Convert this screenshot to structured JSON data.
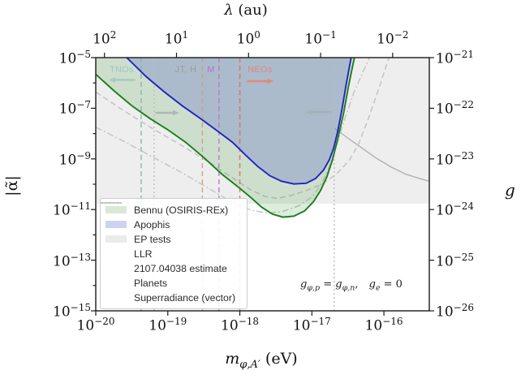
{
  "labels": {
    "top_axis": {
      "sym": "λ",
      "unit": " (au)"
    },
    "bottom_axis": {
      "sym": "m",
      "sub": "φ,A′",
      "unit": " (eV)"
    },
    "left_axis": "|α̃|",
    "right_axis": "g",
    "annotation_parts": [
      [
        "g",
        "i"
      ],
      [
        "φ,p",
        "sub"
      ],
      [
        " = ",
        "n"
      ],
      [
        "g",
        "i"
      ],
      [
        "φ,n",
        "sub"
      ],
      [
        ",",
        "n"
      ],
      [
        "  ",
        "n"
      ],
      [
        "g",
        "i"
      ],
      [
        "e",
        "sub"
      ],
      [
        " = 0",
        "n"
      ]
    ]
  },
  "axes": {
    "x": {
      "scale": "log",
      "label": "m_{φ,A′} (eV)",
      "min_exp": -20,
      "max_exp": -15.37,
      "ticks_exp": [
        -20,
        -19,
        -18,
        -17,
        -16
      ]
    },
    "x_top": {
      "scale": "log",
      "label": "λ (au)",
      "ticks_exp": [
        2,
        1,
        0,
        -1,
        -2
      ],
      "m_log_offset": -17.879
    },
    "y": {
      "scale": "log",
      "label": "|α̃|",
      "min_exp": -15,
      "max_exp": -5,
      "ticks_exp": [
        -5,
        -7,
        -9,
        -11,
        -13,
        -15
      ],
      "minor_ticks_exp": [
        -6,
        -8,
        -10,
        -12,
        -14
      ]
    },
    "y_right": {
      "scale": "log",
      "label": "g",
      "min_exp": -26,
      "max_exp": -21,
      "ticks_exp": [
        -21,
        -22,
        -23,
        -24,
        -25,
        -26
      ]
    }
  },
  "chart_data": {
    "type": "line",
    "title": "",
    "xlabel": "m_{φ,A′} (eV)",
    "ylabel_left": "|α̃|",
    "ylabel_right": "g",
    "x_range_log": [
      -20,
      -15.37
    ],
    "y_range_log": [
      -15,
      -5
    ],
    "grid": false,
    "regions": [
      {
        "name": "EP tests",
        "kind": "band",
        "y_top_log": -5,
        "y_bottom_log": -10.77,
        "fill": "rgba(170,170,170,0.20)"
      }
    ],
    "series": [
      {
        "name": "Bennu (OSIRIS-REx)",
        "kind": "excluded-region",
        "line_color": "#1b7f1b",
        "fill": "rgba(40,140,40,0.16)",
        "line_width": 1.9,
        "points_log": [
          [
            -20.0,
            -5.66
          ],
          [
            -19.75,
            -6.3
          ],
          [
            -19.5,
            -6.9
          ],
          [
            -19.25,
            -7.4
          ],
          [
            -19.0,
            -7.85
          ],
          [
            -18.75,
            -8.35
          ],
          [
            -18.5,
            -8.95
          ],
          [
            -18.25,
            -9.6
          ],
          [
            -18.0,
            -10.16
          ],
          [
            -17.85,
            -10.52
          ],
          [
            -17.7,
            -10.9
          ],
          [
            -17.55,
            -11.18
          ],
          [
            -17.4,
            -11.3
          ],
          [
            -17.25,
            -11.26
          ],
          [
            -17.1,
            -11.05
          ],
          [
            -16.98,
            -10.7
          ],
          [
            -16.88,
            -10.25
          ],
          [
            -16.79,
            -9.7
          ],
          [
            -16.71,
            -9.0
          ],
          [
            -16.64,
            -8.2
          ],
          [
            -16.56,
            -7.2
          ],
          [
            -16.49,
            -6.1
          ],
          [
            -16.41,
            -5.0
          ]
        ],
        "closed_along_top": true,
        "starts_on_left_edge": true
      },
      {
        "name": "Apophis",
        "kind": "excluded-region",
        "line_color": "#2222c0",
        "fill": "rgba(75,90,200,0.26)",
        "line_width": 1.9,
        "points_log": [
          [
            -19.57,
            -5.0
          ],
          [
            -19.3,
            -5.75
          ],
          [
            -19.05,
            -6.35
          ],
          [
            -18.8,
            -6.9
          ],
          [
            -18.55,
            -7.4
          ],
          [
            -18.3,
            -7.92
          ],
          [
            -18.1,
            -8.35
          ],
          [
            -17.92,
            -8.85
          ],
          [
            -17.75,
            -9.3
          ],
          [
            -17.58,
            -9.67
          ],
          [
            -17.42,
            -9.88
          ],
          [
            -17.25,
            -9.99
          ],
          [
            -17.08,
            -9.96
          ],
          [
            -16.95,
            -9.78
          ],
          [
            -16.84,
            -9.45
          ],
          [
            -16.76,
            -9.05
          ],
          [
            -16.7,
            -8.6
          ],
          [
            -16.64,
            -7.9
          ],
          [
            -16.58,
            -7.0
          ],
          [
            -16.52,
            -6.0
          ],
          [
            -16.455,
            -5.0
          ]
        ],
        "closed_along_top": true,
        "starts_on_left_edge": false
      },
      {
        "name": "LLR",
        "kind": "line",
        "line_color": "#b5b5b5",
        "dash": "",
        "line_width": 1.5,
        "points_log": [
          [
            -16.68,
            -7.8
          ],
          [
            -16.5,
            -8.18
          ],
          [
            -16.3,
            -8.58
          ],
          [
            -16.1,
            -8.98
          ],
          [
            -15.9,
            -9.32
          ],
          [
            -15.7,
            -9.6
          ],
          [
            -15.5,
            -9.78
          ],
          [
            -15.37,
            -9.88
          ]
        ]
      },
      {
        "name": "2107.04038 estimate",
        "kind": "line",
        "line_color": "#c3c3c3",
        "dash": "7 4",
        "line_width": 1.5,
        "points_log": [
          [
            -20.0,
            -6.36
          ],
          [
            -19.6,
            -7.12
          ],
          [
            -19.2,
            -7.82
          ],
          [
            -18.8,
            -8.48
          ],
          [
            -18.4,
            -9.18
          ],
          [
            -18.1,
            -9.75
          ],
          [
            -17.85,
            -10.22
          ],
          [
            -17.65,
            -10.48
          ],
          [
            -17.48,
            -10.56
          ],
          [
            -17.28,
            -10.44
          ],
          [
            -17.05,
            -10.22
          ],
          [
            -16.85,
            -9.98
          ],
          [
            -16.65,
            -9.58
          ],
          [
            -16.48,
            -9.05
          ],
          [
            -16.35,
            -8.4
          ],
          [
            -16.22,
            -7.45
          ],
          [
            -16.08,
            -6.3
          ],
          [
            -15.97,
            -5.35
          ],
          [
            -15.93,
            -5.0
          ]
        ]
      },
      {
        "name": "Planets",
        "kind": "line",
        "line_color": "#c6c6c6",
        "dash": "8 3 2 3",
        "line_width": 1.5,
        "points_log": [
          [
            -20.0,
            -7.75
          ],
          [
            -19.6,
            -8.32
          ],
          [
            -19.2,
            -8.94
          ],
          [
            -18.8,
            -9.55
          ],
          [
            -18.4,
            -10.22
          ],
          [
            -18.1,
            -10.72
          ],
          [
            -17.85,
            -11.02
          ],
          [
            -17.62,
            -11.14
          ],
          [
            -17.4,
            -11.07
          ],
          [
            -17.18,
            -10.85
          ],
          [
            -17.0,
            -10.5
          ],
          [
            -16.88,
            -10.05
          ],
          [
            -16.77,
            -9.4
          ],
          [
            -16.66,
            -8.5
          ],
          [
            -16.54,
            -7.4
          ],
          [
            -16.42,
            -6.4
          ],
          [
            -16.28,
            -5.5
          ],
          [
            -16.2,
            -5.0
          ]
        ]
      },
      {
        "name": "Superradiance (vector)",
        "kind": "vlines",
        "line_color": "#bdbdbd",
        "dash": "2 3",
        "line_width": 1.4,
        "x_logs": [
          -19.19,
          -16.69
        ]
      }
    ],
    "species_lines": [
      {
        "label": "TNOs",
        "x_log": -19.37,
        "line_color": "#7cb5ae",
        "label_color": "#9fc6c0",
        "label_x_log": -19.64
      },
      {
        "label": "JT, H",
        "x_log": -18.52,
        "line_color": "#c5a07b",
        "label_color": "#a39a8f",
        "label_x_log": -18.75
      },
      {
        "label": "M",
        "x_log": -18.29,
        "line_color": "#b077c7",
        "label_color": "#b077c7",
        "label_x_log": -18.4
      },
      {
        "label": "NEOs",
        "x_log": -18.0,
        "line_color": "#dd6b60",
        "label_color": "#e0857b",
        "label_x_log": -17.72
      }
    ],
    "arrows": [
      {
        "name": "tnos-arrow",
        "x1_log": -19.45,
        "x2_log": -19.82,
        "y_log": -5.88,
        "color": "#a9cac3"
      },
      {
        "name": "neos-arrow",
        "x1_log": -17.9,
        "x2_log": -17.53,
        "y_log": -5.93,
        "color": "#e08a7e"
      },
      {
        "name": "superradiance-right-arrow",
        "x1_log": -19.17,
        "x2_log": -18.84,
        "y_log": -7.18,
        "color": "#aeb8b4"
      },
      {
        "name": "superradiance-left-arrow",
        "x1_log": -16.73,
        "x2_log": -17.09,
        "y_log": -7.15,
        "color": "#a8b0b8"
      }
    ],
    "annotation": "g_φ,p = g_φ,n,  g_e = 0"
  },
  "legend": {
    "items": [
      {
        "label": "Bennu (OSIRIS-REx)",
        "swatch": "patch",
        "color": "#d9e9d6"
      },
      {
        "label": "Apophis",
        "swatch": "patch",
        "color": "#ccd3ee"
      },
      {
        "label": "EP tests",
        "swatch": "patch",
        "color": "#ebebeb"
      },
      {
        "label": "LLR",
        "swatch": "line",
        "color": "#b5b5b5",
        "dash": ""
      },
      {
        "label": "2107.04038 estimate",
        "swatch": "line",
        "color": "#c3c3c3",
        "dash": "6 4"
      },
      {
        "label": "Planets",
        "swatch": "line",
        "color": "#c6c6c6",
        "dash": "7 3 2 3"
      },
      {
        "label": "Superradiance (vector)",
        "swatch": "line",
        "color": "#bdbdbd",
        "dash": "2 3"
      }
    ]
  }
}
